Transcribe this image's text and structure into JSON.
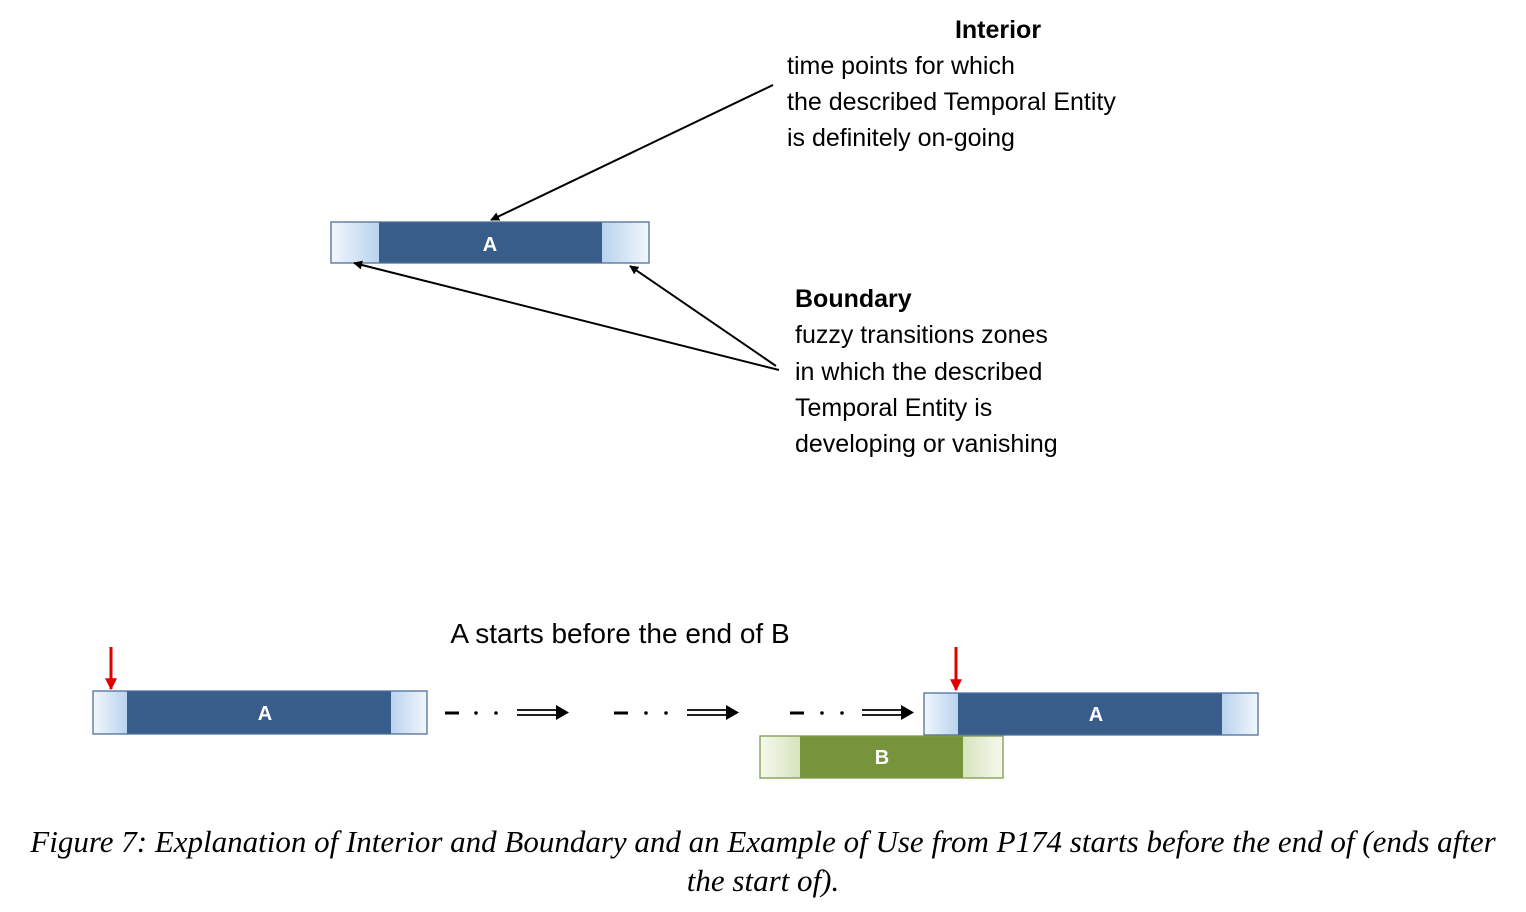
{
  "interior": {
    "title": "Interior",
    "lines": [
      "time points for which",
      "the described Temporal Entity",
      "is definitely on-going"
    ]
  },
  "boundary": {
    "title": "Boundary",
    "lines": [
      "fuzzy transitions zones",
      "in which the described",
      "Temporal Entity is",
      "developing or vanishing"
    ]
  },
  "top_bar": {
    "label": "A"
  },
  "example": {
    "title": "A starts before the end of B",
    "bar_a_left": {
      "label": "A"
    },
    "bar_a_right": {
      "label": "A"
    },
    "bar_b": {
      "label": "B"
    }
  },
  "caption": "Figure 7: Explanation of Interior and Boundary and an Example of Use from P174 starts before the end of (ends after the start of).",
  "colors": {
    "interior_blue": "#385D8A",
    "boundary_blue_light": "#F2F7FC",
    "boundary_blue_dark": "#B9D3EE",
    "interior_green": "#77933C",
    "boundary_green_light": "#F6F9EF",
    "boundary_green_dark": "#D7E4BD",
    "marker_red": "#E00000"
  }
}
